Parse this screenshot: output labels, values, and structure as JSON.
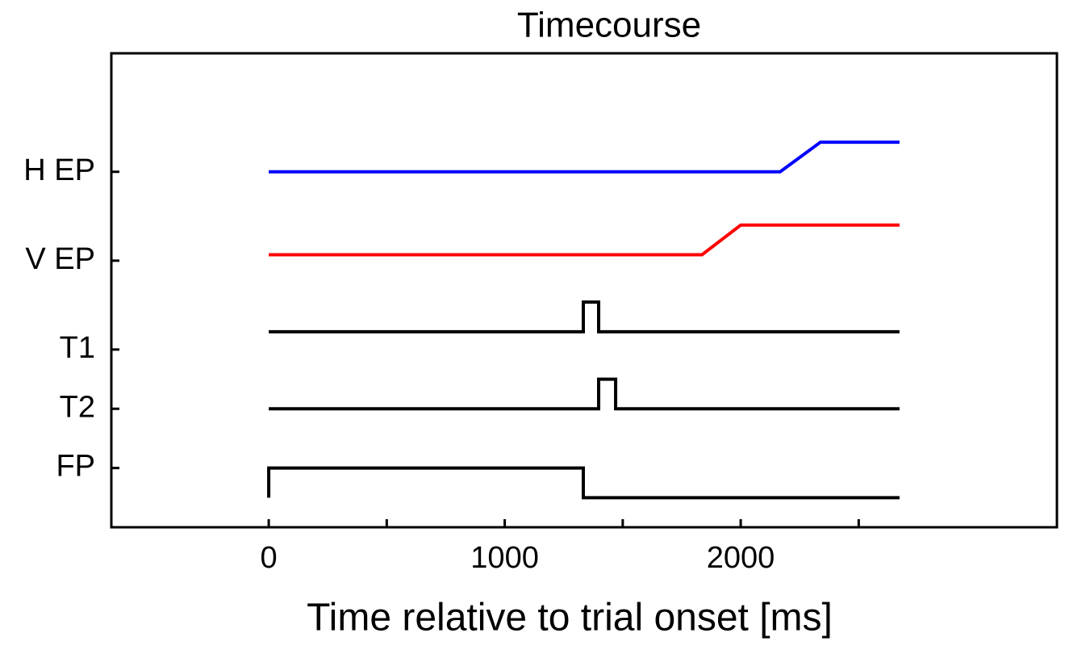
{
  "chart_data": {
    "type": "line",
    "title": "Timecourse",
    "x_label": "Time relative to trial onset [ms]",
    "xlim": [
      -667,
      3340
    ],
    "ylim": [
      0,
      16
    ],
    "xticks": [
      0,
      1000,
      2000
    ],
    "xminor_ticks": [
      500,
      1500,
      2500
    ],
    "yticks": [
      {
        "value": 12,
        "label": "H EP"
      },
      {
        "value": 9,
        "label": "V EP"
      },
      {
        "value": 6,
        "label": "T1"
      },
      {
        "value": 4,
        "label": "T2"
      },
      {
        "value": 2,
        "label": "FP"
      }
    ],
    "series": [
      {
        "color": "#0000ff",
        "x": [
          0,
          2167,
          2338,
          2673
        ],
        "values": [
          12,
          12,
          13,
          13
        ]
      },
      {
        "color": "#ff0000",
        "x": [
          0,
          1836,
          2000,
          2673
        ],
        "values": [
          9.2,
          9.2,
          10.2,
          10.2
        ]
      },
      {
        "color": "#000000",
        "x": [
          0,
          1333,
          1333,
          1398,
          1398,
          2673
        ],
        "values": [
          6.6,
          6.6,
          7.6,
          7.6,
          6.6,
          6.6
        ]
      },
      {
        "color": "#000000",
        "x": [
          0,
          1398,
          1398,
          1470,
          1470,
          2673
        ],
        "values": [
          4,
          4,
          5,
          5,
          4,
          4
        ]
      },
      {
        "color": "#000000",
        "x": [
          0,
          0,
          1333,
          1333,
          2673
        ],
        "values": [
          1,
          2,
          2,
          1,
          1
        ]
      }
    ]
  }
}
